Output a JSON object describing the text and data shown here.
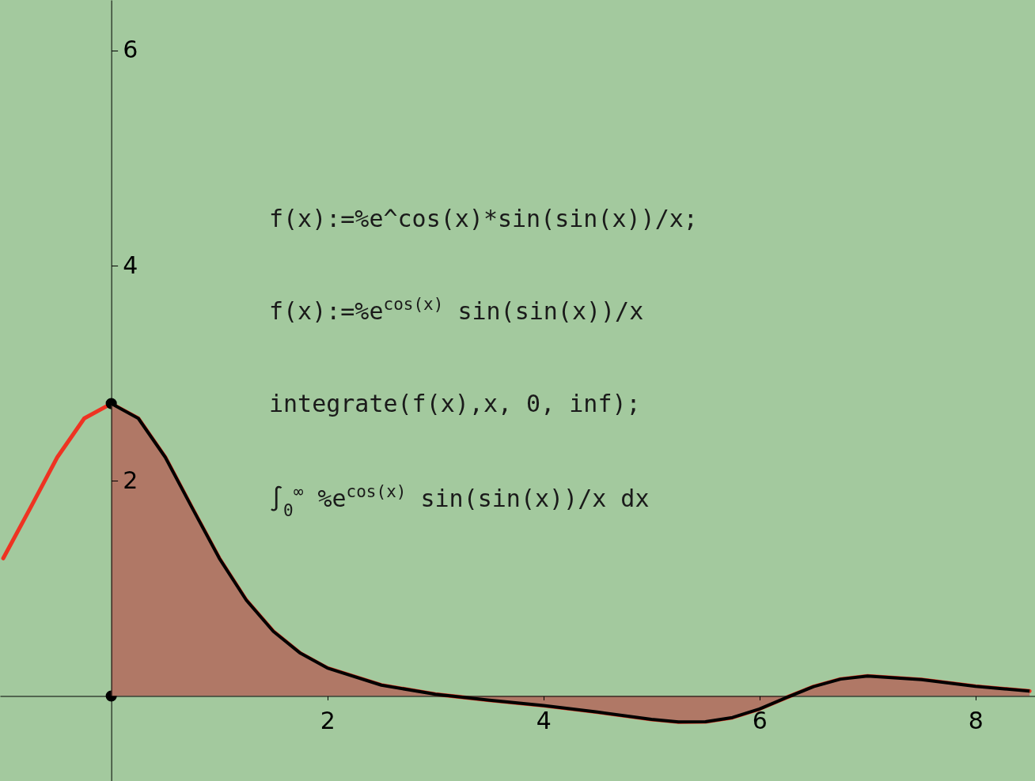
{
  "chart_data": {
    "type": "line",
    "xlim": [
      -1.03,
      8.55
    ],
    "ylim": [
      -0.79,
      6.47
    ],
    "xticks": [
      2,
      4,
      6,
      8
    ],
    "yticks": [
      2,
      4,
      6
    ],
    "grid": false,
    "annotations": [
      "f(x):=%e^cos(x)*sin(sin(x))/x;",
      "f(x):=%e$^{cos(x)}$ sin(sin(x))/x",
      "integrate(f(x),x, 0, inf);",
      "∫$_{0}$$^{∞}$ %e$^{cos(x)}$ sin(sin(x))/x dx"
    ],
    "series": [
      {
        "type": "area",
        "color": "#b07866",
        "x": [
          0,
          0.25,
          0.5,
          0.75,
          1,
          1.25,
          1.5,
          1.75,
          2,
          2.5,
          3,
          3.5,
          4,
          4.5,
          5,
          5.25,
          5.5,
          5.75,
          6,
          6.25,
          6.5,
          6.75,
          7,
          7.5,
          8,
          8.5
        ],
        "values": [
          2.718,
          2.581,
          2.219,
          1.746,
          1.28,
          0.891,
          0.601,
          0.398,
          0.26,
          0.101,
          0.017,
          -0.039,
          -0.089,
          -0.149,
          -0.217,
          -0.241,
          -0.239,
          -0.2,
          -0.12,
          -0.014,
          0.087,
          0.157,
          0.185,
          0.152,
          0.09,
          0.046
        ]
      },
      {
        "color": "#ee3322",
        "x": [
          -1,
          -0.75,
          -0.5,
          -0.25,
          0,
          0.25,
          0.5,
          0.75,
          1,
          1.25,
          1.5,
          1.75,
          2,
          2.5,
          3,
          3.5,
          4,
          4.5,
          5,
          5.25,
          5.5,
          5.75,
          6,
          6.25,
          6.5,
          6.75,
          7,
          7.5,
          8,
          8.5
        ],
        "values": [
          1.28,
          1.746,
          2.219,
          2.581,
          2.718,
          2.581,
          2.219,
          1.746,
          1.28,
          0.891,
          0.601,
          0.398,
          0.26,
          0.101,
          0.017,
          -0.039,
          -0.089,
          -0.149,
          -0.217,
          -0.241,
          -0.239,
          -0.2,
          -0.12,
          -0.014,
          0.087,
          0.157,
          0.185,
          0.152,
          0.09,
          0.046
        ]
      },
      {
        "type": "scatter",
        "color": "#000000",
        "x": [
          0,
          0
        ],
        "values": [
          2.718,
          0
        ]
      }
    ]
  }
}
